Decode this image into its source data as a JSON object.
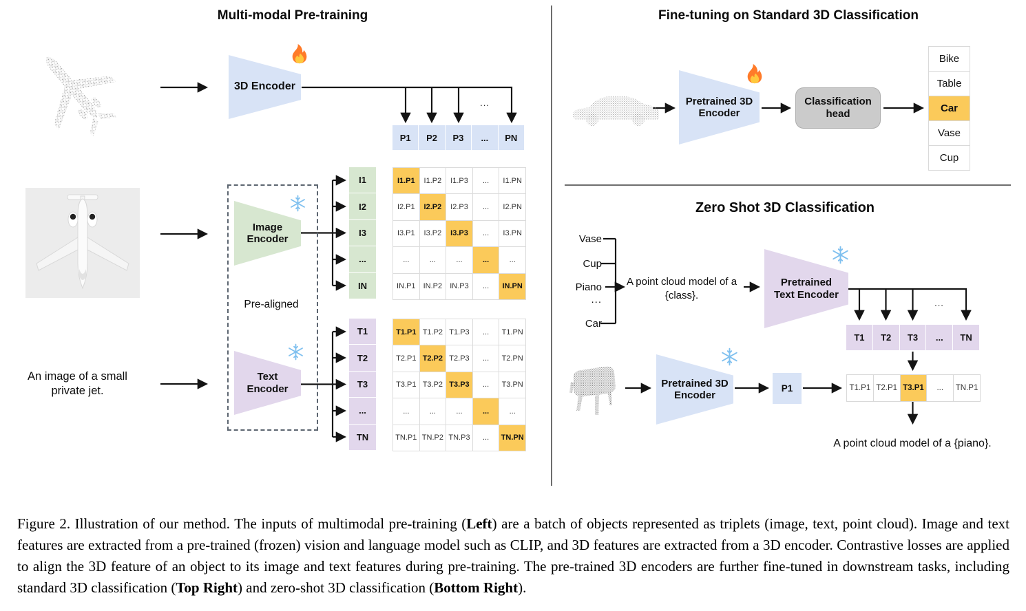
{
  "figure": {
    "left": {
      "title": "Multi-modal Pre-training",
      "encoder_label": "3D Encoder",
      "image_encoder_label": "Image Encoder",
      "text_encoder_label": "Text Encoder",
      "pre_aligned_label": "Pre-aligned",
      "image_caption": "An image of a small private jet.",
      "p_row": [
        "P1",
        "P2",
        "P3",
        "...",
        "PN"
      ],
      "p_row_dots": "...",
      "i_col": [
        "I1",
        "I2",
        "I3",
        "...",
        "IN"
      ],
      "t_col": [
        "T1",
        "T2",
        "T3",
        "...",
        "TN"
      ],
      "i_matrix": [
        [
          "I1.P1",
          "I1.P2",
          "I1.P3",
          "...",
          "I1.PN"
        ],
        [
          "I2.P1",
          "I2.P2",
          "I2.P3",
          "...",
          "I2.PN"
        ],
        [
          "I3.P1",
          "I3.P2",
          "I3.P3",
          "...",
          "I3.PN"
        ],
        [
          "...",
          "...",
          "...",
          "...",
          "..."
        ],
        [
          "IN.P1",
          "IN.P2",
          "IN.P3",
          "...",
          "IN.PN"
        ]
      ],
      "t_matrix": [
        [
          "T1.P1",
          "T1.P2",
          "T1.P3",
          "...",
          "T1.PN"
        ],
        [
          "T2.P1",
          "T2.P2",
          "T2.P3",
          "...",
          "T2.PN"
        ],
        [
          "T3.P1",
          "T3.P2",
          "T3.P3",
          "...",
          "T3.PN"
        ],
        [
          "...",
          "...",
          "...",
          "...",
          "..."
        ],
        [
          "TN.P1",
          "TN.P2",
          "TN.P3",
          "...",
          "TN.PN"
        ]
      ]
    },
    "top_right": {
      "title": "Fine-tuning on Standard 3D Classification",
      "encoder_label": "Pretrained 3D Encoder",
      "head_label": "Classification head",
      "classes": [
        "Bike",
        "Table",
        "Car",
        "Vase",
        "Cup"
      ],
      "highlight_index": 2
    },
    "bottom_right": {
      "title": "Zero Shot 3D Classification",
      "class_labels": [
        "Vase",
        "Cup",
        "Piano",
        "...",
        "Car"
      ],
      "prompt": "A point cloud model of a {class}.",
      "text_encoder_label": "Pretrained Text Encoder",
      "encoder_label": "Pretrained 3D Encoder",
      "t_row": [
        "T1",
        "T2",
        "T3",
        "...",
        "TN"
      ],
      "t_row_dots": "...",
      "p_cell": "P1",
      "result_row": [
        "T1.P1",
        "T2.P1",
        "T3.P1",
        "...",
        "TN.P1"
      ],
      "result_highlight_index": 2,
      "result_text": "A point cloud model of a {piano}."
    },
    "icons": {
      "trainable": "flame-icon",
      "frozen": "snowflake-icon"
    }
  },
  "caption": {
    "segments": [
      {
        "text": "Figure 2. Illustration of our method. The inputs of multimodal pre-training (",
        "bold": false
      },
      {
        "text": "Left",
        "bold": true
      },
      {
        "text": ") are a batch of objects represented as triplets (image, text, point cloud). Image and text features are extracted from a pre-trained (frozen) vision and language model such as CLIP, and 3D features are extracted from a 3D encoder. Contrastive losses are applied to align the 3D feature of an object to its image and text features during pre-training. The pre-trained 3D encoders are further fine-tuned in downstream tasks, including standard 3D classification (",
        "bold": false
      },
      {
        "text": "Top Right",
        "bold": true
      },
      {
        "text": ") and zero-shot 3D classification (",
        "bold": false
      },
      {
        "text": "Bottom Right",
        "bold": true
      },
      {
        "text": ").",
        "bold": false
      }
    ]
  },
  "colors": {
    "blue": "#d8e3f6",
    "green": "#d7e7d0",
    "purple": "#e2d7ec",
    "orange": "#fbca5a",
    "head_gray": "#cbcbcb"
  }
}
